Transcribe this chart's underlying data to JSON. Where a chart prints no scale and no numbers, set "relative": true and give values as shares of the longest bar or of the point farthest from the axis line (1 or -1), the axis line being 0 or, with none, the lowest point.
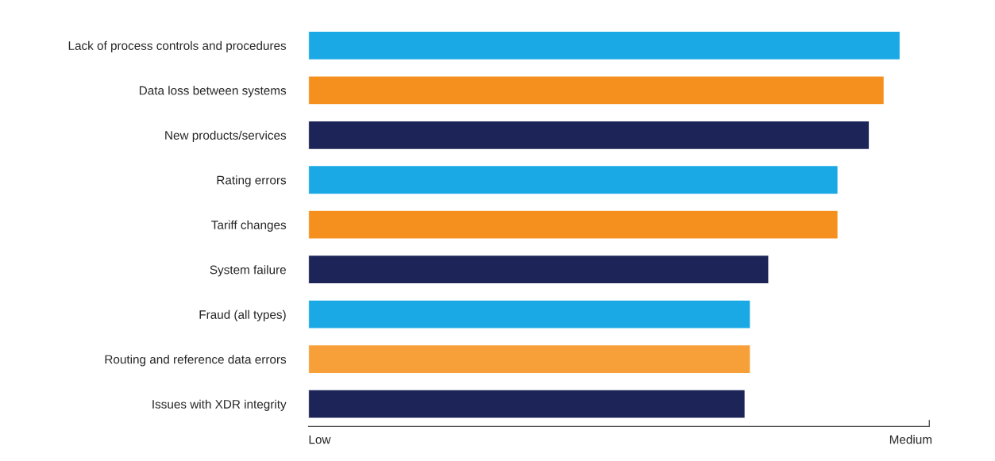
{
  "chart_data": {
    "type": "bar",
    "orientation": "horizontal",
    "relative": true,
    "categories": [
      "Lack of process controls and procedures",
      "Data loss between systems",
      "New products/services",
      "Rating errors",
      "Tariff changes",
      "System failure",
      "Fraud (all types)",
      "Routing and reference data errors",
      "Issues with XDR integrity"
    ],
    "values": [
      1,
      0.973,
      0.948,
      0.895,
      0.895,
      0.778,
      0.747,
      0.747,
      0.738
    ],
    "colors": [
      "#1ba9e6",
      "#f5901e",
      "#1d2457",
      "#1ba9e6",
      "#f5901e",
      "#1d2457",
      "#1ba9e6",
      "#f7a03a",
      "#1d2457"
    ],
    "annotations": [
      "Low",
      "Medium"
    ],
    "grid": false,
    "legend": false
  }
}
